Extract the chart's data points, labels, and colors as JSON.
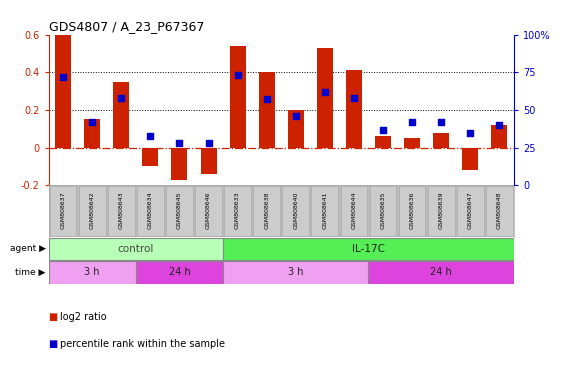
{
  "title": "GDS4807 / A_23_P67367",
  "samples": [
    "GSM808637",
    "GSM808642",
    "GSM808643",
    "GSM808634",
    "GSM808645",
    "GSM808646",
    "GSM808633",
    "GSM808638",
    "GSM808640",
    "GSM808641",
    "GSM808644",
    "GSM808635",
    "GSM808636",
    "GSM808639",
    "GSM808647",
    "GSM808648"
  ],
  "log2_ratio": [
    0.6,
    0.15,
    0.35,
    -0.1,
    -0.17,
    -0.14,
    0.54,
    0.4,
    0.2,
    0.53,
    0.41,
    0.06,
    0.05,
    0.08,
    -0.12,
    0.12
  ],
  "percentile_rank": [
    72,
    42,
    58,
    33,
    28,
    28,
    73,
    57,
    46,
    62,
    58,
    37,
    42,
    42,
    35,
    40
  ],
  "bar_color": "#cc2200",
  "dot_color": "#0000cc",
  "ylim": [
    -0.2,
    0.6
  ],
  "dotted_lines": [
    0.4,
    0.2
  ],
  "zero_line_color": "#cc2200",
  "control_color": "#b8ffb8",
  "il17c_color": "#55ee55",
  "time_3h_color": "#f0a0f0",
  "time_24h_color": "#dd44dd",
  "sample_box_color": "#cccccc",
  "sample_box_edge": "#aaaaaa",
  "sample_bg": "#bbbbbb",
  "background_color": "#ffffff"
}
